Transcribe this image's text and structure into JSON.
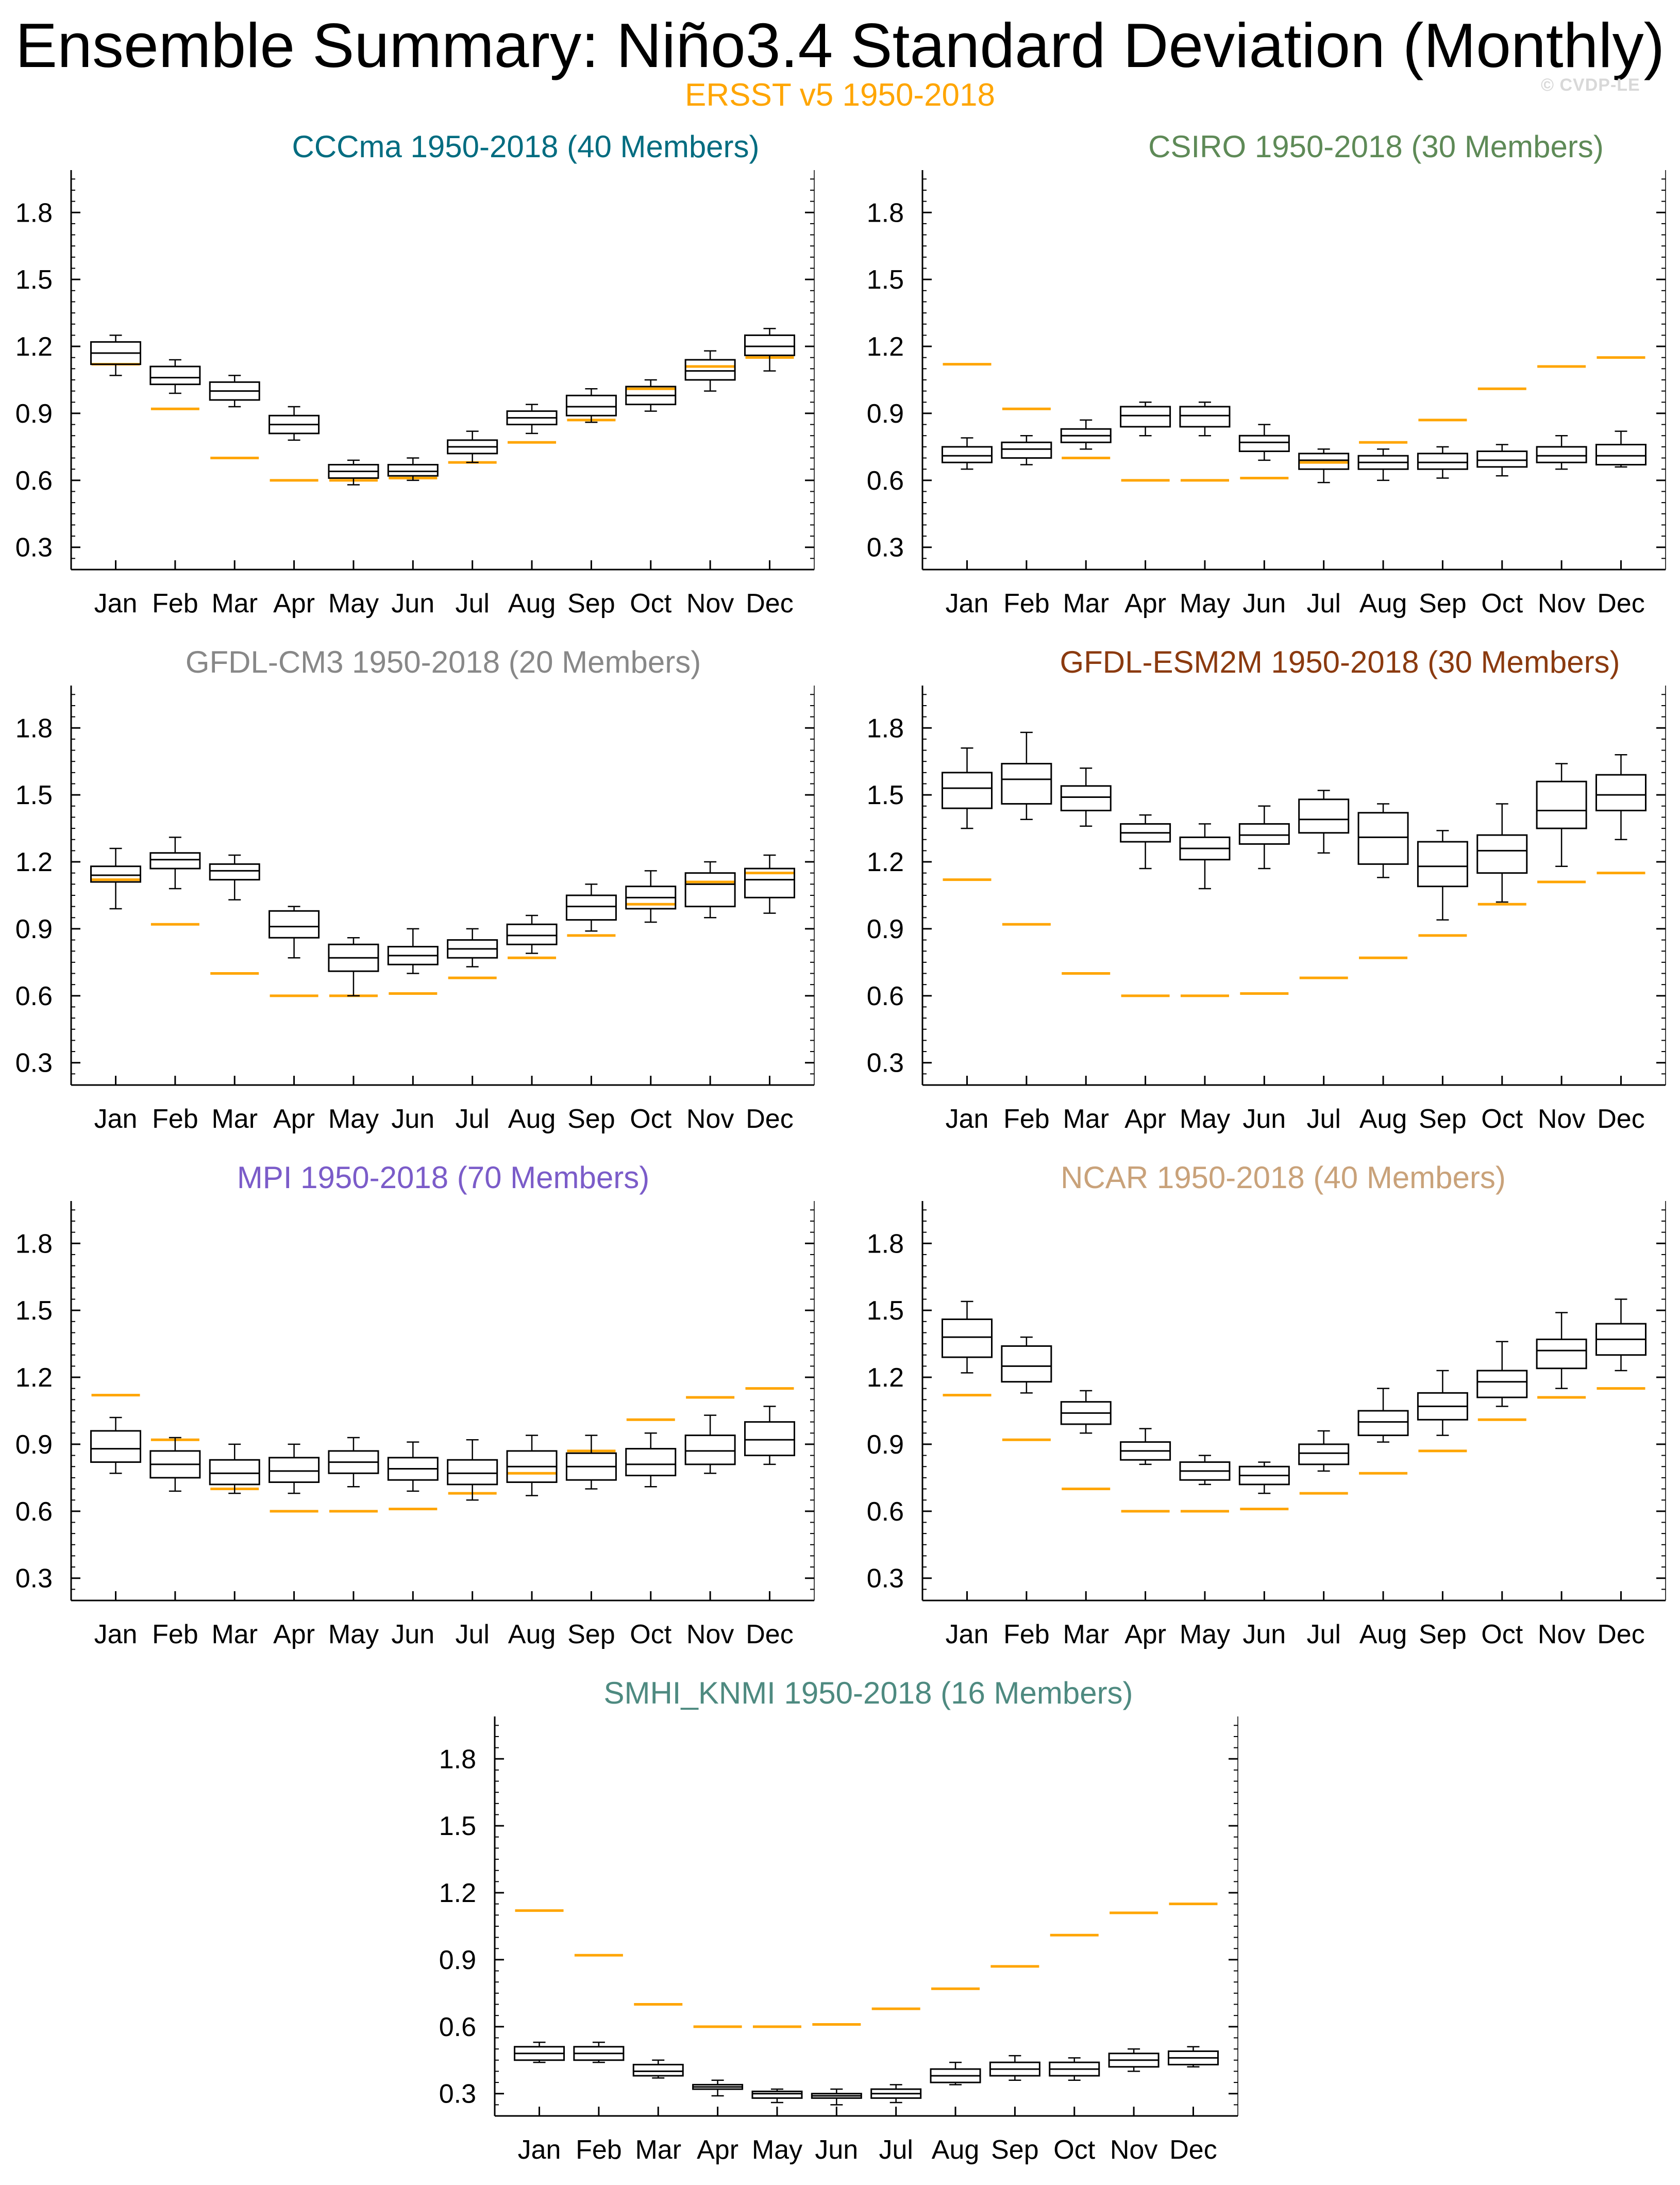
{
  "title": "Ensemble Summary: Niño3.4 Standard Deviation (Monthly)",
  "observations": {
    "label": "ERSST v5 1950-2018",
    "color": "#FFA500"
  },
  "watermark": "© CVDP-LE",
  "chart_data": [
    {
      "type": "box",
      "title": "CCCma 1950-2018 (40 Members)",
      "title_color": "#006C80",
      "categories": [
        "Jan",
        "Feb",
        "Mar",
        "Apr",
        "May",
        "Jun",
        "Jul",
        "Aug",
        "Sep",
        "Oct",
        "Nov",
        "Dec"
      ],
      "ylim": [
        0.2,
        1.99
      ],
      "yticks": [
        0.3,
        0.6,
        0.9,
        1.2,
        1.5,
        1.8
      ],
      "boxes": [
        {
          "min": 1.07,
          "q1": 1.12,
          "median": 1.17,
          "q3": 1.22,
          "max": 1.25
        },
        {
          "min": 0.99,
          "q1": 1.03,
          "median": 1.06,
          "q3": 1.11,
          "max": 1.14
        },
        {
          "min": 0.93,
          "q1": 0.96,
          "median": 1.0,
          "q3": 1.04,
          "max": 1.07
        },
        {
          "min": 0.78,
          "q1": 0.81,
          "median": 0.85,
          "q3": 0.89,
          "max": 0.93
        },
        {
          "min": 0.58,
          "q1": 0.61,
          "median": 0.64,
          "q3": 0.67,
          "max": 0.69
        },
        {
          "min": 0.6,
          "q1": 0.62,
          "median": 0.64,
          "q3": 0.67,
          "max": 0.7
        },
        {
          "min": 0.68,
          "q1": 0.72,
          "median": 0.75,
          "q3": 0.78,
          "max": 0.82
        },
        {
          "min": 0.81,
          "q1": 0.85,
          "median": 0.88,
          "q3": 0.91,
          "max": 0.94
        },
        {
          "min": 0.86,
          "q1": 0.89,
          "median": 0.93,
          "q3": 0.98,
          "max": 1.01
        },
        {
          "min": 0.91,
          "q1": 0.94,
          "median": 0.98,
          "q3": 1.02,
          "max": 1.05
        },
        {
          "min": 1.0,
          "q1": 1.05,
          "median": 1.09,
          "q3": 1.14,
          "max": 1.18
        },
        {
          "min": 1.09,
          "q1": 1.16,
          "median": 1.2,
          "q3": 1.25,
          "max": 1.28
        }
      ],
      "obs": [
        1.12,
        0.92,
        0.7,
        0.6,
        0.6,
        0.61,
        0.68,
        0.77,
        0.87,
        1.01,
        1.11,
        1.15
      ]
    },
    {
      "type": "box",
      "title": "CSIRO 1950-2018 (30 Members)",
      "title_color": "#5E8A57",
      "categories": [
        "Jan",
        "Feb",
        "Mar",
        "Apr",
        "May",
        "Jun",
        "Jul",
        "Aug",
        "Sep",
        "Oct",
        "Nov",
        "Dec"
      ],
      "ylim": [
        0.2,
        1.99
      ],
      "yticks": [
        0.3,
        0.6,
        0.9,
        1.2,
        1.5,
        1.8
      ],
      "boxes": [
        {
          "min": 0.65,
          "q1": 0.68,
          "median": 0.71,
          "q3": 0.75,
          "max": 0.79
        },
        {
          "min": 0.67,
          "q1": 0.7,
          "median": 0.74,
          "q3": 0.77,
          "max": 0.8
        },
        {
          "min": 0.74,
          "q1": 0.77,
          "median": 0.8,
          "q3": 0.83,
          "max": 0.87
        },
        {
          "min": 0.8,
          "q1": 0.84,
          "median": 0.89,
          "q3": 0.93,
          "max": 0.95
        },
        {
          "min": 0.8,
          "q1": 0.84,
          "median": 0.89,
          "q3": 0.93,
          "max": 0.95
        },
        {
          "min": 0.69,
          "q1": 0.73,
          "median": 0.77,
          "q3": 0.8,
          "max": 0.85
        },
        {
          "min": 0.59,
          "q1": 0.65,
          "median": 0.69,
          "q3": 0.72,
          "max": 0.74
        },
        {
          "min": 0.6,
          "q1": 0.65,
          "median": 0.68,
          "q3": 0.71,
          "max": 0.74
        },
        {
          "min": 0.61,
          "q1": 0.65,
          "median": 0.68,
          "q3": 0.72,
          "max": 0.75
        },
        {
          "min": 0.62,
          "q1": 0.66,
          "median": 0.69,
          "q3": 0.73,
          "max": 0.76
        },
        {
          "min": 0.65,
          "q1": 0.68,
          "median": 0.71,
          "q3": 0.75,
          "max": 0.8
        },
        {
          "min": 0.66,
          "q1": 0.67,
          "median": 0.71,
          "q3": 0.76,
          "max": 0.82
        }
      ],
      "obs": [
        1.12,
        0.92,
        0.7,
        0.6,
        0.6,
        0.61,
        0.68,
        0.77,
        0.87,
        1.01,
        1.11,
        1.15
      ]
    },
    {
      "type": "box",
      "title": "GFDL-CM3 1950-2018 (20 Members)",
      "title_color": "#888888",
      "categories": [
        "Jan",
        "Feb",
        "Mar",
        "Apr",
        "May",
        "Jun",
        "Jul",
        "Aug",
        "Sep",
        "Oct",
        "Nov",
        "Dec"
      ],
      "ylim": [
        0.2,
        1.99
      ],
      "yticks": [
        0.3,
        0.6,
        0.9,
        1.2,
        1.5,
        1.8
      ],
      "boxes": [
        {
          "min": 0.99,
          "q1": 1.11,
          "median": 1.14,
          "q3": 1.18,
          "max": 1.26
        },
        {
          "min": 1.08,
          "q1": 1.17,
          "median": 1.21,
          "q3": 1.24,
          "max": 1.31
        },
        {
          "min": 1.03,
          "q1": 1.12,
          "median": 1.16,
          "q3": 1.19,
          "max": 1.23
        },
        {
          "min": 0.77,
          "q1": 0.86,
          "median": 0.91,
          "q3": 0.98,
          "max": 1.0
        },
        {
          "min": 0.6,
          "q1": 0.71,
          "median": 0.77,
          "q3": 0.83,
          "max": 0.86
        },
        {
          "min": 0.7,
          "q1": 0.74,
          "median": 0.78,
          "q3": 0.82,
          "max": 0.9
        },
        {
          "min": 0.73,
          "q1": 0.77,
          "median": 0.81,
          "q3": 0.85,
          "max": 0.9
        },
        {
          "min": 0.79,
          "q1": 0.83,
          "median": 0.87,
          "q3": 0.92,
          "max": 0.96
        },
        {
          "min": 0.89,
          "q1": 0.94,
          "median": 1.0,
          "q3": 1.05,
          "max": 1.1
        },
        {
          "min": 0.93,
          "q1": 0.99,
          "median": 1.04,
          "q3": 1.09,
          "max": 1.16
        },
        {
          "min": 0.95,
          "q1": 1.0,
          "median": 1.1,
          "q3": 1.15,
          "max": 1.2
        },
        {
          "min": 0.97,
          "q1": 1.04,
          "median": 1.12,
          "q3": 1.17,
          "max": 1.23
        }
      ],
      "obs": [
        1.12,
        0.92,
        0.7,
        0.6,
        0.6,
        0.61,
        0.68,
        0.77,
        0.87,
        1.01,
        1.11,
        1.15
      ]
    },
    {
      "type": "box",
      "title": "GFDL-ESM2M 1950-2018 (30 Members)",
      "title_color": "#8B3A0F",
      "categories": [
        "Jan",
        "Feb",
        "Mar",
        "Apr",
        "May",
        "Jun",
        "Jul",
        "Aug",
        "Sep",
        "Oct",
        "Nov",
        "Dec"
      ],
      "ylim": [
        0.2,
        1.99
      ],
      "yticks": [
        0.3,
        0.6,
        0.9,
        1.2,
        1.5,
        1.8
      ],
      "boxes": [
        {
          "min": 1.35,
          "q1": 1.44,
          "median": 1.53,
          "q3": 1.6,
          "max": 1.71
        },
        {
          "min": 1.39,
          "q1": 1.46,
          "median": 1.57,
          "q3": 1.64,
          "max": 1.78
        },
        {
          "min": 1.36,
          "q1": 1.43,
          "median": 1.49,
          "q3": 1.54,
          "max": 1.62
        },
        {
          "min": 1.17,
          "q1": 1.29,
          "median": 1.33,
          "q3": 1.37,
          "max": 1.41
        },
        {
          "min": 1.08,
          "q1": 1.21,
          "median": 1.26,
          "q3": 1.31,
          "max": 1.37
        },
        {
          "min": 1.17,
          "q1": 1.28,
          "median": 1.32,
          "q3": 1.37,
          "max": 1.45
        },
        {
          "min": 1.24,
          "q1": 1.33,
          "median": 1.39,
          "q3": 1.48,
          "max": 1.52
        },
        {
          "min": 1.13,
          "q1": 1.19,
          "median": 1.31,
          "q3": 1.42,
          "max": 1.46
        },
        {
          "min": 0.94,
          "q1": 1.09,
          "median": 1.18,
          "q3": 1.29,
          "max": 1.34
        },
        {
          "min": 1.02,
          "q1": 1.15,
          "median": 1.25,
          "q3": 1.32,
          "max": 1.46
        },
        {
          "min": 1.18,
          "q1": 1.35,
          "median": 1.43,
          "q3": 1.56,
          "max": 1.64
        },
        {
          "min": 1.3,
          "q1": 1.43,
          "median": 1.5,
          "q3": 1.59,
          "max": 1.68
        }
      ],
      "obs": [
        1.12,
        0.92,
        0.7,
        0.6,
        0.6,
        0.61,
        0.68,
        0.77,
        0.87,
        1.01,
        1.11,
        1.15
      ]
    },
    {
      "type": "box",
      "title": "MPI 1950-2018 (70 Members)",
      "title_color": "#7B5CC9",
      "categories": [
        "Jan",
        "Feb",
        "Mar",
        "Apr",
        "May",
        "Jun",
        "Jul",
        "Aug",
        "Sep",
        "Oct",
        "Nov",
        "Dec"
      ],
      "ylim": [
        0.2,
        1.99
      ],
      "yticks": [
        0.3,
        0.6,
        0.9,
        1.2,
        1.5,
        1.8
      ],
      "boxes": [
        {
          "min": 0.77,
          "q1": 0.82,
          "median": 0.88,
          "q3": 0.96,
          "max": 1.02
        },
        {
          "min": 0.69,
          "q1": 0.75,
          "median": 0.81,
          "q3": 0.87,
          "max": 0.93
        },
        {
          "min": 0.68,
          "q1": 0.72,
          "median": 0.77,
          "q3": 0.83,
          "max": 0.9
        },
        {
          "min": 0.68,
          "q1": 0.73,
          "median": 0.78,
          "q3": 0.84,
          "max": 0.9
        },
        {
          "min": 0.71,
          "q1": 0.77,
          "median": 0.82,
          "q3": 0.87,
          "max": 0.93
        },
        {
          "min": 0.69,
          "q1": 0.74,
          "median": 0.79,
          "q3": 0.84,
          "max": 0.91
        },
        {
          "min": 0.65,
          "q1": 0.72,
          "median": 0.77,
          "q3": 0.83,
          "max": 0.92
        },
        {
          "min": 0.67,
          "q1": 0.73,
          "median": 0.8,
          "q3": 0.87,
          "max": 0.94
        },
        {
          "min": 0.7,
          "q1": 0.74,
          "median": 0.8,
          "q3": 0.86,
          "max": 0.94
        },
        {
          "min": 0.71,
          "q1": 0.76,
          "median": 0.81,
          "q3": 0.88,
          "max": 0.95
        },
        {
          "min": 0.77,
          "q1": 0.81,
          "median": 0.87,
          "q3": 0.94,
          "max": 1.03
        },
        {
          "min": 0.81,
          "q1": 0.85,
          "median": 0.92,
          "q3": 1.0,
          "max": 1.07
        }
      ],
      "obs": [
        1.12,
        0.92,
        0.7,
        0.6,
        0.6,
        0.61,
        0.68,
        0.77,
        0.87,
        1.01,
        1.11,
        1.15
      ]
    },
    {
      "type": "box",
      "title": "NCAR 1950-2018 (40 Members)",
      "title_color": "#C9A27A",
      "categories": [
        "Jan",
        "Feb",
        "Mar",
        "Apr",
        "May",
        "Jun",
        "Jul",
        "Aug",
        "Sep",
        "Oct",
        "Nov",
        "Dec"
      ],
      "ylim": [
        0.2,
        1.99
      ],
      "yticks": [
        0.3,
        0.6,
        0.9,
        1.2,
        1.5,
        1.8
      ],
      "boxes": [
        {
          "min": 1.22,
          "q1": 1.29,
          "median": 1.38,
          "q3": 1.46,
          "max": 1.54
        },
        {
          "min": 1.13,
          "q1": 1.18,
          "median": 1.25,
          "q3": 1.34,
          "max": 1.38
        },
        {
          "min": 0.95,
          "q1": 0.99,
          "median": 1.04,
          "q3": 1.09,
          "max": 1.14
        },
        {
          "min": 0.81,
          "q1": 0.83,
          "median": 0.87,
          "q3": 0.91,
          "max": 0.97
        },
        {
          "min": 0.72,
          "q1": 0.74,
          "median": 0.78,
          "q3": 0.82,
          "max": 0.85
        },
        {
          "min": 0.68,
          "q1": 0.72,
          "median": 0.76,
          "q3": 0.8,
          "max": 0.82
        },
        {
          "min": 0.78,
          "q1": 0.81,
          "median": 0.86,
          "q3": 0.9,
          "max": 0.96
        },
        {
          "min": 0.91,
          "q1": 0.94,
          "median": 1.0,
          "q3": 1.05,
          "max": 1.15
        },
        {
          "min": 0.94,
          "q1": 1.01,
          "median": 1.07,
          "q3": 1.13,
          "max": 1.23
        },
        {
          "min": 1.07,
          "q1": 1.11,
          "median": 1.18,
          "q3": 1.23,
          "max": 1.36
        },
        {
          "min": 1.15,
          "q1": 1.24,
          "median": 1.32,
          "q3": 1.37,
          "max": 1.49
        },
        {
          "min": 1.23,
          "q1": 1.3,
          "median": 1.37,
          "q3": 1.44,
          "max": 1.55
        }
      ],
      "obs": [
        1.12,
        0.92,
        0.7,
        0.6,
        0.6,
        0.61,
        0.68,
        0.77,
        0.87,
        1.01,
        1.11,
        1.15
      ]
    },
    {
      "type": "box",
      "title": "SMHI_KNMI 1950-2018 (16 Members)",
      "title_color": "#4E8A80",
      "categories": [
        "Jan",
        "Feb",
        "Mar",
        "Apr",
        "May",
        "Jun",
        "Jul",
        "Aug",
        "Sep",
        "Oct",
        "Nov",
        "Dec"
      ],
      "ylim": [
        0.2,
        1.99
      ],
      "yticks": [
        0.3,
        0.6,
        0.9,
        1.2,
        1.5,
        1.8
      ],
      "boxes": [
        {
          "min": 0.44,
          "q1": 0.45,
          "median": 0.48,
          "q3": 0.51,
          "max": 0.53
        },
        {
          "min": 0.44,
          "q1": 0.45,
          "median": 0.48,
          "q3": 0.51,
          "max": 0.53
        },
        {
          "min": 0.37,
          "q1": 0.38,
          "median": 0.4,
          "q3": 0.43,
          "max": 0.45
        },
        {
          "min": 0.29,
          "q1": 0.32,
          "median": 0.33,
          "q3": 0.34,
          "max": 0.36
        },
        {
          "min": 0.26,
          "q1": 0.28,
          "median": 0.3,
          "q3": 0.31,
          "max": 0.32
        },
        {
          "min": 0.25,
          "q1": 0.28,
          "median": 0.29,
          "q3": 0.3,
          "max": 0.32
        },
        {
          "min": 0.26,
          "q1": 0.28,
          "median": 0.3,
          "q3": 0.32,
          "max": 0.34
        },
        {
          "min": 0.34,
          "q1": 0.35,
          "median": 0.38,
          "q3": 0.41,
          "max": 0.44
        },
        {
          "min": 0.36,
          "q1": 0.38,
          "median": 0.41,
          "q3": 0.44,
          "max": 0.47
        },
        {
          "min": 0.36,
          "q1": 0.38,
          "median": 0.41,
          "q3": 0.44,
          "max": 0.46
        },
        {
          "min": 0.4,
          "q1": 0.42,
          "median": 0.45,
          "q3": 0.48,
          "max": 0.5
        },
        {
          "min": 0.42,
          "q1": 0.43,
          "median": 0.46,
          "q3": 0.49,
          "max": 0.51
        }
      ],
      "obs": [
        1.12,
        0.92,
        0.7,
        0.6,
        0.6,
        0.61,
        0.68,
        0.77,
        0.87,
        1.01,
        1.11,
        1.15
      ]
    }
  ]
}
